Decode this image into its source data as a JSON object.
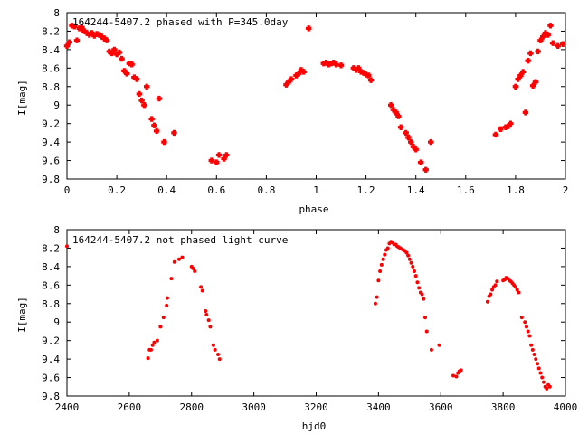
{
  "colors": {
    "series": "#ff0000",
    "frame": "#000000",
    "grid": "#cfcfcf"
  },
  "chart_data": [
    {
      "type": "scatter",
      "title": "164244-5407.2 phased with P=345.0day",
      "xlabel": "phase",
      "ylabel": "I[mag]",
      "xlim": [
        0,
        2
      ],
      "ylim": [
        9.8,
        8
      ],
      "y_inverted": true,
      "grid": false,
      "xticks": [
        "0",
        "0.2",
        "0.4",
        "0.6",
        "0.8",
        "1",
        "1.2",
        "1.4",
        "1.6",
        "1.8",
        "2"
      ],
      "yticks": [
        "8",
        "8.2",
        "8.4",
        "8.6",
        "8.8",
        "9",
        "9.2",
        "9.4",
        "9.6",
        "9.8"
      ],
      "series": [
        {
          "x": [
            0.0,
            0.01,
            0.02,
            0.03,
            0.04,
            0.05,
            0.06,
            0.07,
            0.08,
            0.09,
            0.1,
            0.11,
            0.12,
            0.13,
            0.14,
            0.15,
            0.16,
            0.17,
            0.18,
            0.19,
            0.2,
            0.21,
            0.22,
            0.23,
            0.24,
            0.25,
            0.26,
            0.27,
            0.28,
            0.29,
            0.3,
            0.31,
            0.32,
            0.34,
            0.35,
            0.36,
            0.37,
            0.39,
            0.43,
            0.58,
            0.6,
            0.61,
            0.63,
            0.64,
            0.88,
            0.89,
            0.9,
            0.92,
            0.93,
            0.94,
            0.95,
            0.97,
            1.03,
            1.04,
            1.05,
            1.06,
            1.07,
            1.08,
            1.1,
            1.15,
            1.16,
            1.17,
            1.18,
            1.19,
            1.2,
            1.21,
            1.22,
            1.3,
            1.31,
            1.32,
            1.33,
            1.34,
            1.36,
            1.37,
            1.38,
            1.39,
            1.4,
            1.42,
            1.44,
            1.46,
            1.72,
            1.74,
            1.76,
            1.77,
            1.78,
            1.8,
            1.81,
            1.82,
            1.83,
            1.84,
            1.85,
            1.86,
            1.87,
            1.88,
            1.89,
            1.9,
            1.91,
            1.92,
            1.93,
            1.94,
            1.95,
            1.97,
            1.99
          ],
          "y": [
            8.36,
            8.32,
            8.14,
            8.15,
            8.3,
            8.17,
            8.16,
            8.2,
            8.22,
            8.24,
            8.22,
            8.25,
            8.23,
            8.24,
            8.26,
            8.28,
            8.3,
            8.42,
            8.44,
            8.4,
            8.45,
            8.43,
            8.5,
            8.63,
            8.66,
            8.55,
            8.56,
            8.7,
            8.72,
            8.88,
            8.95,
            9.0,
            8.8,
            9.15,
            9.22,
            9.28,
            8.93,
            9.4,
            9.3,
            9.6,
            9.62,
            9.54,
            9.58,
            9.54,
            8.78,
            8.75,
            8.72,
            8.68,
            8.66,
            8.62,
            8.64,
            8.17,
            8.55,
            8.54,
            8.56,
            8.55,
            8.54,
            8.56,
            8.57,
            8.6,
            8.62,
            8.6,
            8.64,
            8.65,
            8.67,
            8.68,
            8.73,
            9.0,
            9.05,
            9.08,
            9.12,
            9.24,
            9.3,
            9.35,
            9.4,
            9.45,
            9.48,
            9.62,
            9.7,
            9.4,
            9.32,
            9.26,
            9.24,
            9.23,
            9.2,
            8.8,
            8.72,
            8.68,
            8.64,
            9.08,
            8.52,
            8.44,
            8.79,
            8.75,
            8.42,
            8.3,
            8.26,
            8.22,
            8.24,
            8.14,
            8.33,
            8.36,
            8.34
          ]
        }
      ]
    },
    {
      "type": "scatter",
      "title": "164244-5407.2 not phased light curve",
      "xlabel": "hjd0",
      "ylabel": "I[mag]",
      "xlim": [
        2400,
        4000
      ],
      "ylim": [
        9.8,
        8
      ],
      "y_inverted": true,
      "grid": false,
      "xticks": [
        "2400",
        "2600",
        "2800",
        "3000",
        "3200",
        "3400",
        "3600",
        "3800",
        "4000"
      ],
      "yticks": [
        "8",
        "8.2",
        "8.4",
        "8.6",
        "8.8",
        "9",
        "9.2",
        "9.4",
        "9.6",
        "9.8"
      ],
      "series": [
        {
          "x": [
            2400,
            2660,
            2665,
            2670,
            2675,
            2680,
            2690,
            2700,
            2710,
            2720,
            2722,
            2735,
            2745,
            2760,
            2770,
            2800,
            2805,
            2810,
            2830,
            2835,
            2845,
            2848,
            2855,
            2860,
            2870,
            2875,
            2885,
            2890,
            3390,
            3395,
            3400,
            3405,
            3410,
            3415,
            3420,
            3425,
            3430,
            3435,
            3440,
            3445,
            3450,
            3455,
            3460,
            3465,
            3470,
            3475,
            3480,
            3485,
            3490,
            3495,
            3500,
            3505,
            3510,
            3515,
            3520,
            3525,
            3530,
            3535,
            3540,
            3545,
            3550,
            3555,
            3570,
            3595,
            3640,
            3650,
            3655,
            3660,
            3665,
            3750,
            3755,
            3760,
            3765,
            3770,
            3775,
            3780,
            3800,
            3805,
            3810,
            3815,
            3820,
            3825,
            3830,
            3835,
            3840,
            3845,
            3850,
            3860,
            3870,
            3875,
            3880,
            3885,
            3890,
            3895,
            3900,
            3905,
            3910,
            3915,
            3920,
            3925,
            3930,
            3935,
            3940,
            3945,
            3950
          ],
          "y": [
            8.18,
            9.39,
            9.3,
            9.3,
            9.25,
            9.22,
            9.2,
            9.05,
            8.95,
            8.82,
            8.74,
            8.53,
            8.35,
            8.32,
            8.3,
            8.4,
            8.42,
            8.45,
            8.62,
            8.66,
            8.88,
            8.92,
            8.98,
            9.05,
            9.25,
            9.3,
            9.35,
            9.4,
            8.8,
            8.73,
            8.55,
            8.45,
            8.38,
            8.32,
            8.27,
            8.22,
            8.2,
            8.15,
            8.13,
            8.14,
            8.16,
            8.16,
            8.18,
            8.19,
            8.2,
            8.21,
            8.22,
            8.23,
            8.25,
            8.28,
            8.32,
            8.36,
            8.4,
            8.45,
            8.5,
            8.57,
            8.63,
            8.68,
            8.7,
            8.75,
            8.95,
            9.1,
            9.3,
            9.25,
            9.58,
            9.59,
            9.55,
            9.53,
            9.52,
            8.78,
            8.72,
            8.7,
            8.65,
            8.62,
            8.6,
            8.56,
            8.55,
            8.54,
            8.52,
            8.53,
            8.55,
            8.56,
            8.58,
            8.6,
            8.62,
            8.65,
            8.68,
            8.95,
            9.0,
            9.05,
            9.1,
            9.15,
            9.25,
            9.3,
            9.35,
            9.4,
            9.45,
            9.5,
            9.55,
            9.6,
            9.65,
            9.7,
            9.72,
            9.68,
            9.7
          ]
        }
      ]
    }
  ]
}
